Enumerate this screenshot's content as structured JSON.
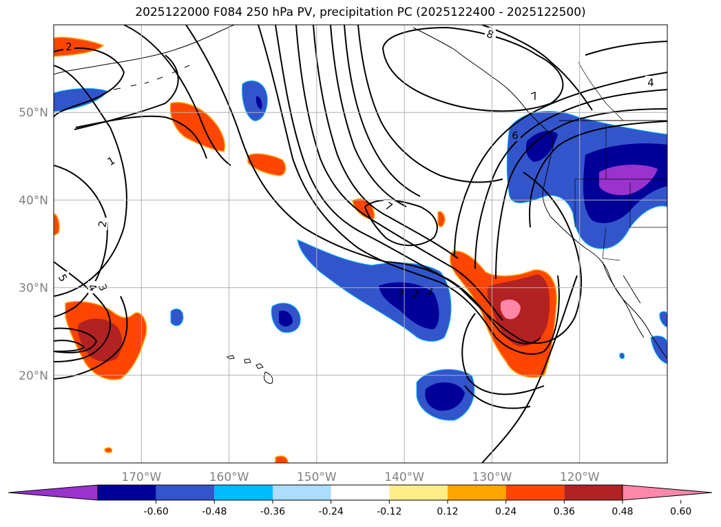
{
  "title": "2025122000 F084 250 hPa PV, precipitation PC (2025122400 - 2025122500)",
  "map": {
    "lon_range": [
      -180,
      -110
    ],
    "lat_range": [
      10,
      60
    ],
    "lon_ticks": [
      {
        "value": -170,
        "label": "170°W"
      },
      {
        "value": -160,
        "label": "160°W"
      },
      {
        "value": -150,
        "label": "150°W"
      },
      {
        "value": -140,
        "label": "140°W"
      },
      {
        "value": -130,
        "label": "130°W"
      },
      {
        "value": -120,
        "label": "120°W"
      }
    ],
    "lat_ticks": [
      {
        "value": 20,
        "label": "20°N"
      },
      {
        "value": 30,
        "label": "30°N"
      },
      {
        "value": 40,
        "label": "40°N"
      },
      {
        "value": 50,
        "label": "50°N"
      }
    ],
    "grid": true,
    "contour_labels": [
      "2",
      "1",
      "2",
      "5",
      "4",
      "3",
      "7",
      "7",
      "2",
      "3",
      "7",
      "6",
      "8",
      "4"
    ]
  },
  "colorbar": {
    "ticks": [
      "-0.60",
      "-0.48",
      "-0.36",
      "-0.24",
      "-0.12",
      "0.12",
      "0.24",
      "0.36",
      "0.48",
      "0.60"
    ],
    "colors": [
      "#9933cc",
      "#000099",
      "#3355cc",
      "#00bbff",
      "#aaddff",
      "#ffffff",
      "#ffee88",
      "#ffa500",
      "#ff4500",
      "#b22222",
      "#ff88aa"
    ]
  }
}
